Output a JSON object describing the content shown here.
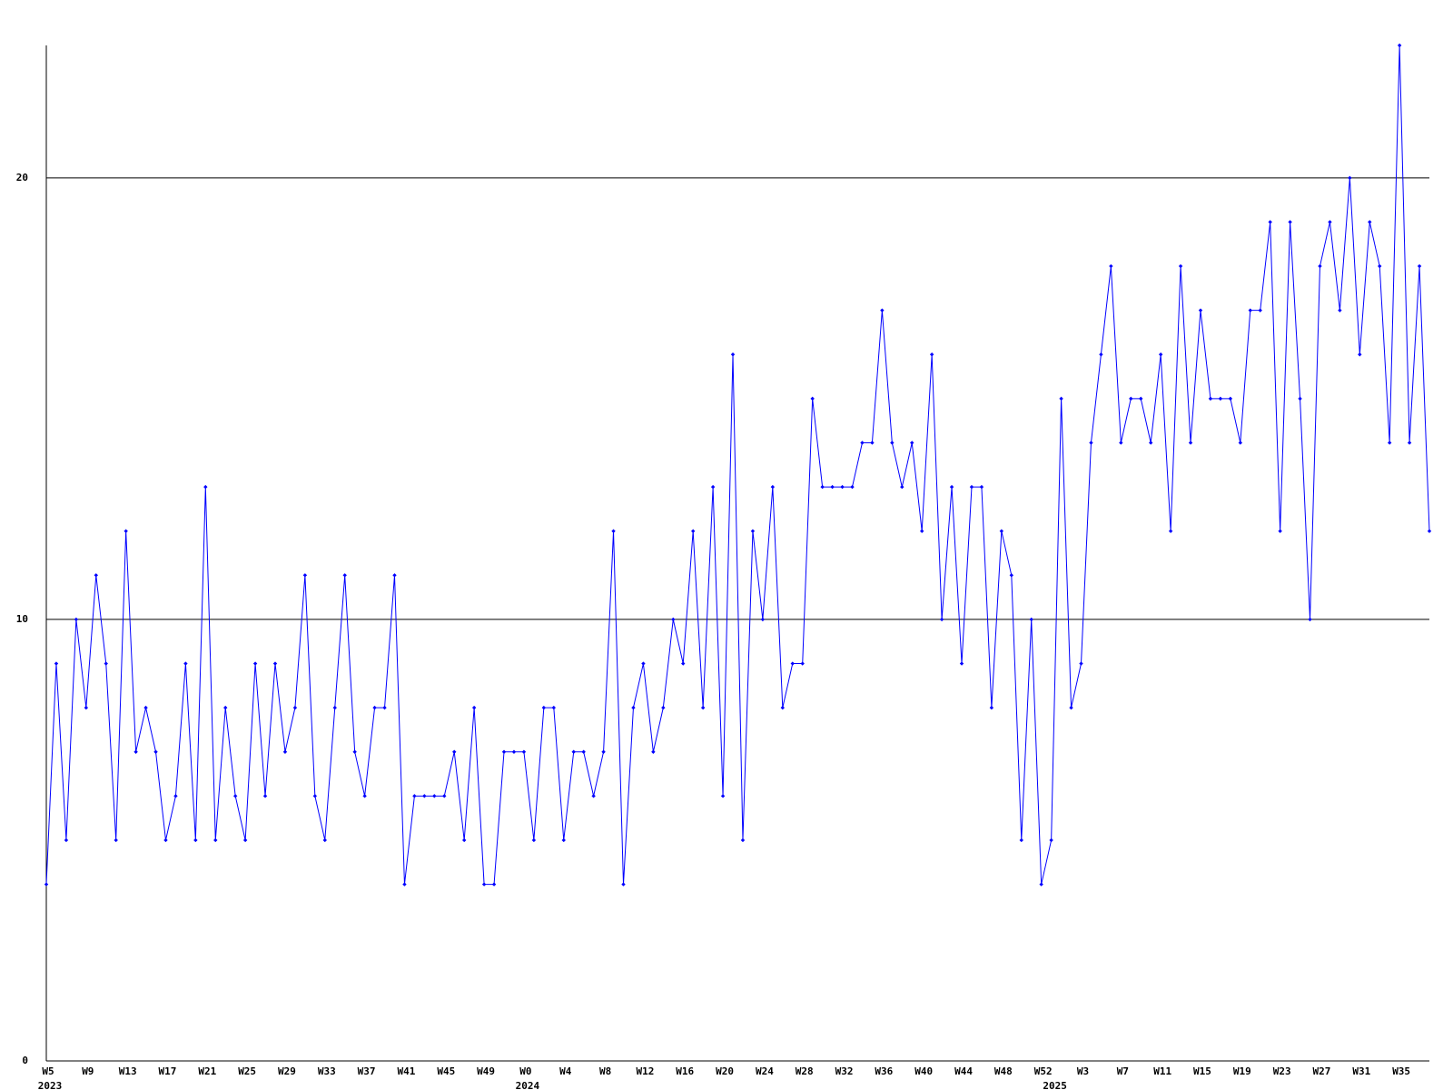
{
  "chart_data": {
    "type": "line",
    "color": "#0000ff",
    "marker": "diamond",
    "grid": true,
    "ylim": [
      0,
      23
    ],
    "yticks": [
      0,
      10,
      20
    ],
    "categories": [
      "W5",
      null,
      null,
      null,
      "W9",
      null,
      null,
      null,
      "W13",
      null,
      null,
      null,
      "W17",
      null,
      null,
      null,
      "W21",
      null,
      null,
      null,
      "W25",
      null,
      null,
      null,
      "W29",
      null,
      null,
      null,
      "W33",
      null,
      null,
      null,
      "W37",
      null,
      null,
      null,
      "W41",
      null,
      null,
      null,
      "W45",
      null,
      null,
      null,
      "W49",
      null,
      null,
      null,
      "W0",
      null,
      null,
      null,
      "W4",
      null,
      null,
      null,
      "W8",
      null,
      null,
      null,
      "W12",
      null,
      null,
      null,
      "W16",
      null,
      null,
      null,
      "W20",
      null,
      null,
      null,
      "W24",
      null,
      null,
      null,
      "W28",
      null,
      null,
      null,
      "W32",
      null,
      null,
      null,
      "W36",
      null,
      null,
      null,
      "W40",
      null,
      null,
      null,
      "W44",
      null,
      null,
      null,
      "W48",
      null,
      null,
      null,
      "W52",
      null,
      null,
      null,
      "W3",
      null,
      null,
      null,
      "W7",
      null,
      null,
      null,
      "W11",
      null,
      null,
      null,
      "W15",
      null,
      null,
      null,
      "W19",
      null,
      null,
      null,
      "W23",
      null,
      null,
      null,
      "W27",
      null,
      null,
      null,
      "W31",
      null,
      null,
      null,
      "W35",
      null,
      null,
      null
    ],
    "category_years": [
      "2023",
      null,
      null,
      null,
      null,
      null,
      null,
      null,
      null,
      null,
      null,
      null,
      null,
      null,
      null,
      null,
      null,
      null,
      null,
      null,
      null,
      null,
      null,
      null,
      null,
      null,
      null,
      null,
      null,
      null,
      null,
      null,
      null,
      null,
      null,
      null,
      null,
      null,
      null,
      null,
      null,
      null,
      null,
      null,
      null,
      null,
      null,
      null,
      "2024",
      null,
      null,
      null,
      null,
      null,
      null,
      null,
      null,
      null,
      null,
      null,
      null,
      null,
      null,
      null,
      null,
      null,
      null,
      null,
      null,
      null,
      null,
      null,
      null,
      null,
      null,
      null,
      null,
      null,
      null,
      null,
      null,
      null,
      null,
      null,
      null,
      null,
      null,
      null,
      null,
      null,
      null,
      null,
      null,
      null,
      null,
      null,
      null,
      null,
      null,
      null,
      null,
      "2025",
      null,
      null,
      null,
      null,
      null,
      null,
      null,
      null,
      null,
      null,
      null,
      null,
      null,
      null,
      null,
      null,
      null,
      null,
      null,
      null,
      null,
      null,
      null,
      null,
      null,
      null,
      null,
      null,
      null,
      null,
      null,
      null,
      null,
      null,
      null,
      null,
      null,
      null
    ],
    "values": [
      4,
      9,
      5,
      10,
      8,
      11,
      9,
      5,
      12,
      7,
      8,
      7,
      5,
      6,
      9,
      5,
      13,
      5,
      8,
      6,
      5,
      9,
      6,
      9,
      7,
      8,
      11,
      6,
      5,
      8,
      11,
      7,
      6,
      8,
      8,
      11,
      4,
      6,
      6,
      6,
      6,
      7,
      5,
      8,
      4,
      4,
      7,
      7,
      7,
      5,
      8,
      8,
      5,
      7,
      7,
      6,
      7,
      12,
      4,
      8,
      9,
      7,
      8,
      10,
      9,
      12,
      8,
      13,
      6,
      16,
      5,
      12,
      10,
      13,
      8,
      9,
      9,
      15,
      13,
      13,
      13,
      13,
      14,
      14,
      17,
      14,
      13,
      14,
      12,
      16,
      10,
      13,
      9,
      13,
      13,
      8,
      12,
      11,
      5,
      10,
      4,
      5,
      15,
      8,
      9,
      14,
      16,
      18,
      14,
      15,
      15,
      14,
      16,
      12,
      18,
      14,
      17,
      15,
      15,
      15,
      14,
      17,
      17,
      19,
      12,
      19,
      15,
      10,
      18,
      19,
      17,
      20,
      16,
      19,
      18,
      14,
      23,
      14,
      18,
      12
    ]
  }
}
